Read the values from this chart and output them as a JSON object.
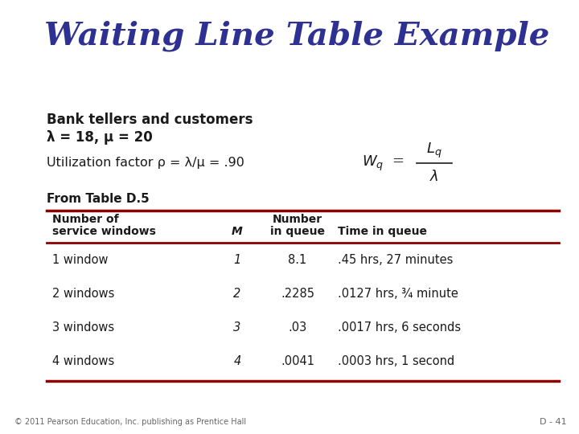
{
  "title": "Waiting Line Table Example",
  "title_color": "#2E3191",
  "title_fontsize": 28,
  "bg_color": "#FFFFFF",
  "subtitle_line1": "Bank tellers and customers",
  "subtitle_line2": "λ = 18, μ = 20",
  "util_text": "Utilization factor ρ = λ/μ = .90",
  "from_table": "From Table D.5",
  "table_headers_line1": [
    "Number of",
    "",
    "Number",
    ""
  ],
  "table_headers_line2": [
    "service windows",
    "M",
    "in queue",
    "Time in queue"
  ],
  "table_rows": [
    [
      "1 window",
      "1",
      "8.1",
      ".45 hrs, 27 minutes"
    ],
    [
      "2 windows",
      "2",
      ".2285",
      ".0127 hrs, ¾ minute"
    ],
    [
      "3 windows",
      "3",
      ".03",
      ".0017 hrs, 6 seconds"
    ],
    [
      "4 windows",
      "4",
      ".0041",
      ".0003 hrs, 1 second"
    ]
  ],
  "header_line_color": "#8B0000",
  "text_color": "#1A1A1A",
  "footer_text": "© 2011 Pearson Education, Inc. publishing as Prentice Hall",
  "slide_num": "D - 41"
}
